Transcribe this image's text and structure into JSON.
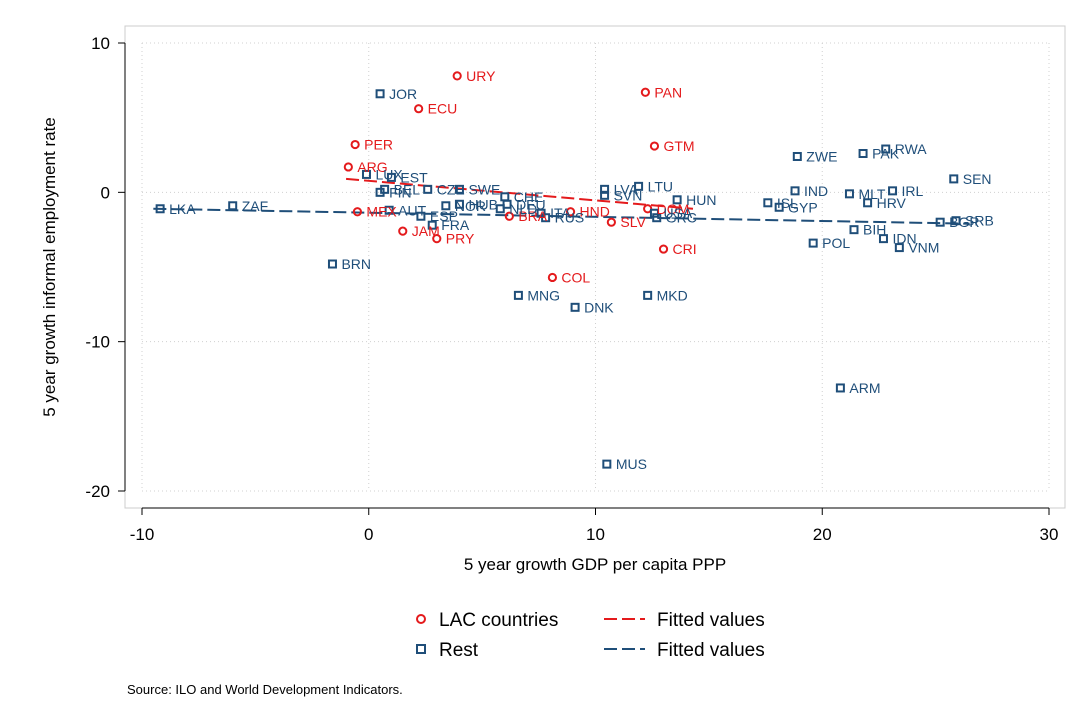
{
  "chart_data": {
    "type": "scatter",
    "xlabel": "5 year growth GDP per capita PPP",
    "ylabel": "5 year growth informal employment rate",
    "xlim": [
      -10,
      30
    ],
    "ylim": [
      -20,
      10
    ],
    "xticks": [
      -10,
      0,
      10,
      20,
      30
    ],
    "yticks": [
      10,
      0,
      -10,
      -20
    ],
    "grid": "dotted",
    "legend_position": "bottom",
    "series": [
      {
        "name": "LAC countries",
        "marker": "circle",
        "color": "#e41a1c",
        "points": [
          {
            "label": "URY",
            "x": 3.9,
            "y": 7.8
          },
          {
            "label": "PAN",
            "x": 12.2,
            "y": 6.7
          },
          {
            "label": "ECU",
            "x": 2.2,
            "y": 5.6
          },
          {
            "label": "PER",
            "x": -0.6,
            "y": 3.2
          },
          {
            "label": "GTM",
            "x": 12.6,
            "y": 3.1
          },
          {
            "label": "ARG",
            "x": -0.9,
            "y": 1.7
          },
          {
            "label": "MEX",
            "x": -0.5,
            "y": -1.3
          },
          {
            "label": "DOM",
            "x": 12.3,
            "y": -1.1
          },
          {
            "label": "HND",
            "x": 8.9,
            "y": -1.3
          },
          {
            "label": "BRA",
            "x": 6.2,
            "y": -1.6
          },
          {
            "label": "SLV",
            "x": 10.7,
            "y": -2.0
          },
          {
            "label": "JAM",
            "x": 1.5,
            "y": -2.6
          },
          {
            "label": "PRY",
            "x": 3.0,
            "y": -3.1
          },
          {
            "label": "CRI",
            "x": 13.0,
            "y": -3.8
          },
          {
            "label": "COL",
            "x": 8.1,
            "y": -5.7
          }
        ]
      },
      {
        "name": "Rest",
        "marker": "square",
        "color": "#1f4e79",
        "points": [
          {
            "label": "JOR",
            "x": 0.5,
            "y": 6.6
          },
          {
            "label": "RWA",
            "x": 22.8,
            "y": 2.9
          },
          {
            "label": "PAK",
            "x": 21.8,
            "y": 2.6
          },
          {
            "label": "ZWE",
            "x": 18.9,
            "y": 2.4
          },
          {
            "label": "SEN",
            "x": 25.8,
            "y": 0.9
          },
          {
            "label": "EST",
            "x": 1.0,
            "y": 1.0
          },
          {
            "label": "LUX",
            "x": -0.1,
            "y": 1.2
          },
          {
            "label": "LTU",
            "x": 11.9,
            "y": 0.4
          },
          {
            "label": "LVA",
            "x": 10.4,
            "y": 0.2
          },
          {
            "label": "CZE",
            "x": 2.6,
            "y": 0.2
          },
          {
            "label": "SWE",
            "x": 4.0,
            "y": 0.2
          },
          {
            "label": "IND",
            "x": 18.8,
            "y": 0.1
          },
          {
            "label": "IRL",
            "x": 23.1,
            "y": 0.1
          },
          {
            "label": "SVN",
            "x": 10.4,
            "y": -0.2
          },
          {
            "label": "MLT",
            "x": 21.2,
            "y": -0.1
          },
          {
            "label": "FIN",
            "x": 0.5,
            "y": 0.0
          },
          {
            "label": "BEL",
            "x": 0.7,
            "y": 0.2
          },
          {
            "label": "CHE",
            "x": 6.0,
            "y": -0.3
          },
          {
            "label": "HUN",
            "x": 13.6,
            "y": -0.5
          },
          {
            "label": "HRV",
            "x": 22.0,
            "y": -0.7
          },
          {
            "label": "ISL",
            "x": 17.6,
            "y": -0.7
          },
          {
            "label": "GYP",
            "x": 18.1,
            "y": -1.0
          },
          {
            "label": "AUT",
            "x": 0.9,
            "y": -1.2
          },
          {
            "label": "NOR",
            "x": 3.4,
            "y": -0.9
          },
          {
            "label": "HUB",
            "x": 4.0,
            "y": -0.8
          },
          {
            "label": "DEU",
            "x": 6.1,
            "y": -0.8
          },
          {
            "label": "NLD",
            "x": 5.8,
            "y": -1.1
          },
          {
            "label": "ITA",
            "x": 7.6,
            "y": -1.4
          },
          {
            "label": "ESP",
            "x": 2.3,
            "y": -1.6
          },
          {
            "label": "RUS",
            "x": 7.8,
            "y": -1.7
          },
          {
            "label": "GRC",
            "x": 12.7,
            "y": -1.7
          },
          {
            "label": "USA",
            "x": 12.6,
            "y": -1.4
          },
          {
            "label": "LKA",
            "x": -9.2,
            "y": -1.1
          },
          {
            "label": "ZAF",
            "x": -6.0,
            "y": -0.9
          },
          {
            "label": "FRA",
            "x": 2.8,
            "y": -2.2
          },
          {
            "label": "BGR",
            "x": 25.2,
            "y": -2.0
          },
          {
            "label": "SRB",
            "x": 25.9,
            "y": -1.9
          },
          {
            "label": "BIH",
            "x": 21.4,
            "y": -2.5
          },
          {
            "label": "IDN",
            "x": 22.7,
            "y": -3.1
          },
          {
            "label": "POL",
            "x": 19.6,
            "y": -3.4
          },
          {
            "label": "VNM",
            "x": 23.4,
            "y": -3.7
          },
          {
            "label": "BRN",
            "x": -1.6,
            "y": -4.8
          },
          {
            "label": "MNG",
            "x": 6.6,
            "y": -6.9
          },
          {
            "label": "MKD",
            "x": 12.3,
            "y": -6.9
          },
          {
            "label": "DNK",
            "x": 9.1,
            "y": -7.7
          },
          {
            "label": "ARM",
            "x": 20.8,
            "y": -13.1
          },
          {
            "label": "MUS",
            "x": 10.5,
            "y": -18.2
          }
        ]
      }
    ],
    "fitted_lines": [
      {
        "name": "Fitted values",
        "series": "LAC countries",
        "dash": "long",
        "color": "#e41a1c",
        "x": [
          -1.0,
          14.3
        ],
        "y": [
          0.9,
          -1.1
        ]
      },
      {
        "name": "Fitted values",
        "series": "Rest",
        "dash": "long",
        "color": "#1f4e79",
        "x": [
          -9.5,
          26.5
        ],
        "y": [
          -1.1,
          -2.1
        ]
      }
    ],
    "legend": [
      {
        "label": "LAC countries",
        "kind": "circle",
        "color": "#e41a1c"
      },
      {
        "label": "Fitted values",
        "kind": "line",
        "color": "#e41a1c"
      },
      {
        "label": "Rest",
        "kind": "square",
        "color": "#1f4e79"
      },
      {
        "label": "Fitted values",
        "kind": "line",
        "color": "#1f4e79"
      }
    ],
    "source": "Source: ILO and World Development Indicators."
  }
}
